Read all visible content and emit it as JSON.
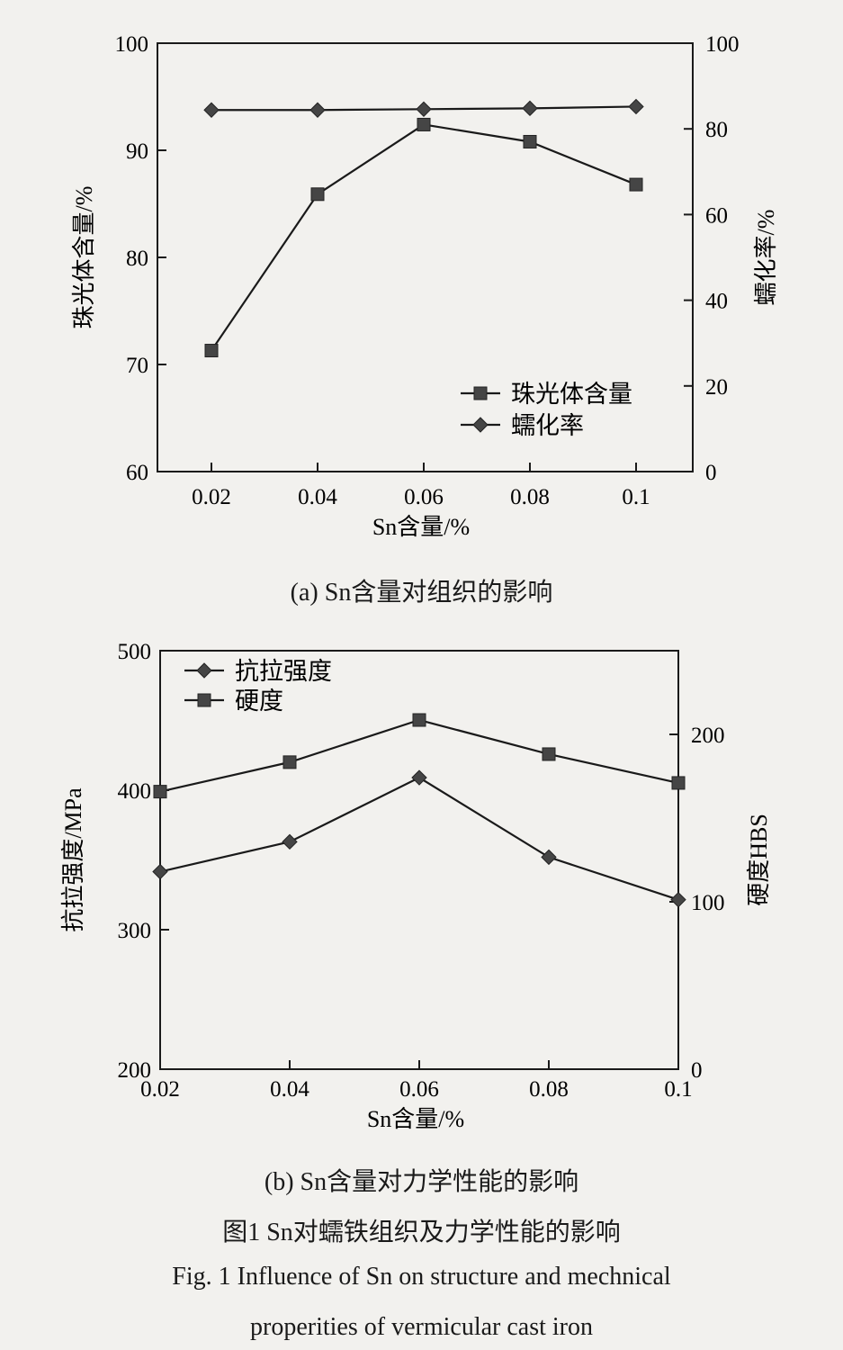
{
  "chart_data": [
    {
      "type": "line",
      "x": [
        0.02,
        0.04,
        0.06,
        0.08,
        0.1
      ],
      "xticks": [
        "0.02",
        "0.04",
        "0.06",
        "0.08",
        "0.1"
      ],
      "xlabel": "Sn含量/%",
      "ylabel": "珠光体含量/%",
      "ylabel_right": "蠕化率/%",
      "ylim": [
        60,
        100
      ],
      "ylim_right": [
        0,
        100
      ],
      "yticks": [
        "60",
        "70",
        "80",
        "90",
        "100"
      ],
      "yticks_right": [
        "0",
        "20",
        "40",
        "60",
        "80",
        "100"
      ],
      "legend_position": "bottom-right",
      "series": [
        {
          "name": "珠光体含量",
          "axis": "left",
          "marker": "square",
          "values": [
            71.3,
            85.9,
            92.4,
            90.8,
            86.8
          ]
        },
        {
          "name": "蠕化率",
          "axis": "right",
          "marker": "diamond",
          "values": [
            84.4,
            84.4,
            84.6,
            84.8,
            85.2
          ]
        }
      ],
      "caption": "(a)  Sn含量对组织的影响"
    },
    {
      "type": "line",
      "x": [
        0.02,
        0.04,
        0.06,
        0.08,
        0.1
      ],
      "xticks": [
        "0.02",
        "0.04",
        "0.06",
        "0.08",
        "0.1"
      ],
      "xlabel": "Sn含量/%",
      "ylabel": "抗拉强度/MPa",
      "ylabel_right": "硬度HBS",
      "ylim": [
        200,
        500
      ],
      "ylim_right": [
        0,
        250
      ],
      "yticks": [
        "200",
        "300",
        "400",
        "500"
      ],
      "yticks_right": [
        "0",
        "100",
        "200"
      ],
      "legend_position": "top-left",
      "series": [
        {
          "name": "抗拉强度",
          "axis": "left",
          "marker": "diamond",
          "values": [
            341.6,
            363,
            409,
            352,
            321.5
          ]
        },
        {
          "name": "硬度",
          "axis": "right",
          "marker": "square",
          "values": [
            165.8,
            183.4,
            208.6,
            188.2,
            171
          ]
        }
      ],
      "caption": "(b)  Sn含量对力学性能的影响"
    }
  ],
  "figure": {
    "title_cn": "图1    Sn对蠕铁组织及力学性能的影响",
    "title_en_1": "Fig. 1 Influence of Sn on structure and mechnical",
    "title_en_2": "properities of vermicular cast iron"
  },
  "colors": {
    "line": "#1a1a1a",
    "marker": "#454545",
    "background": "#f2f1ee"
  }
}
